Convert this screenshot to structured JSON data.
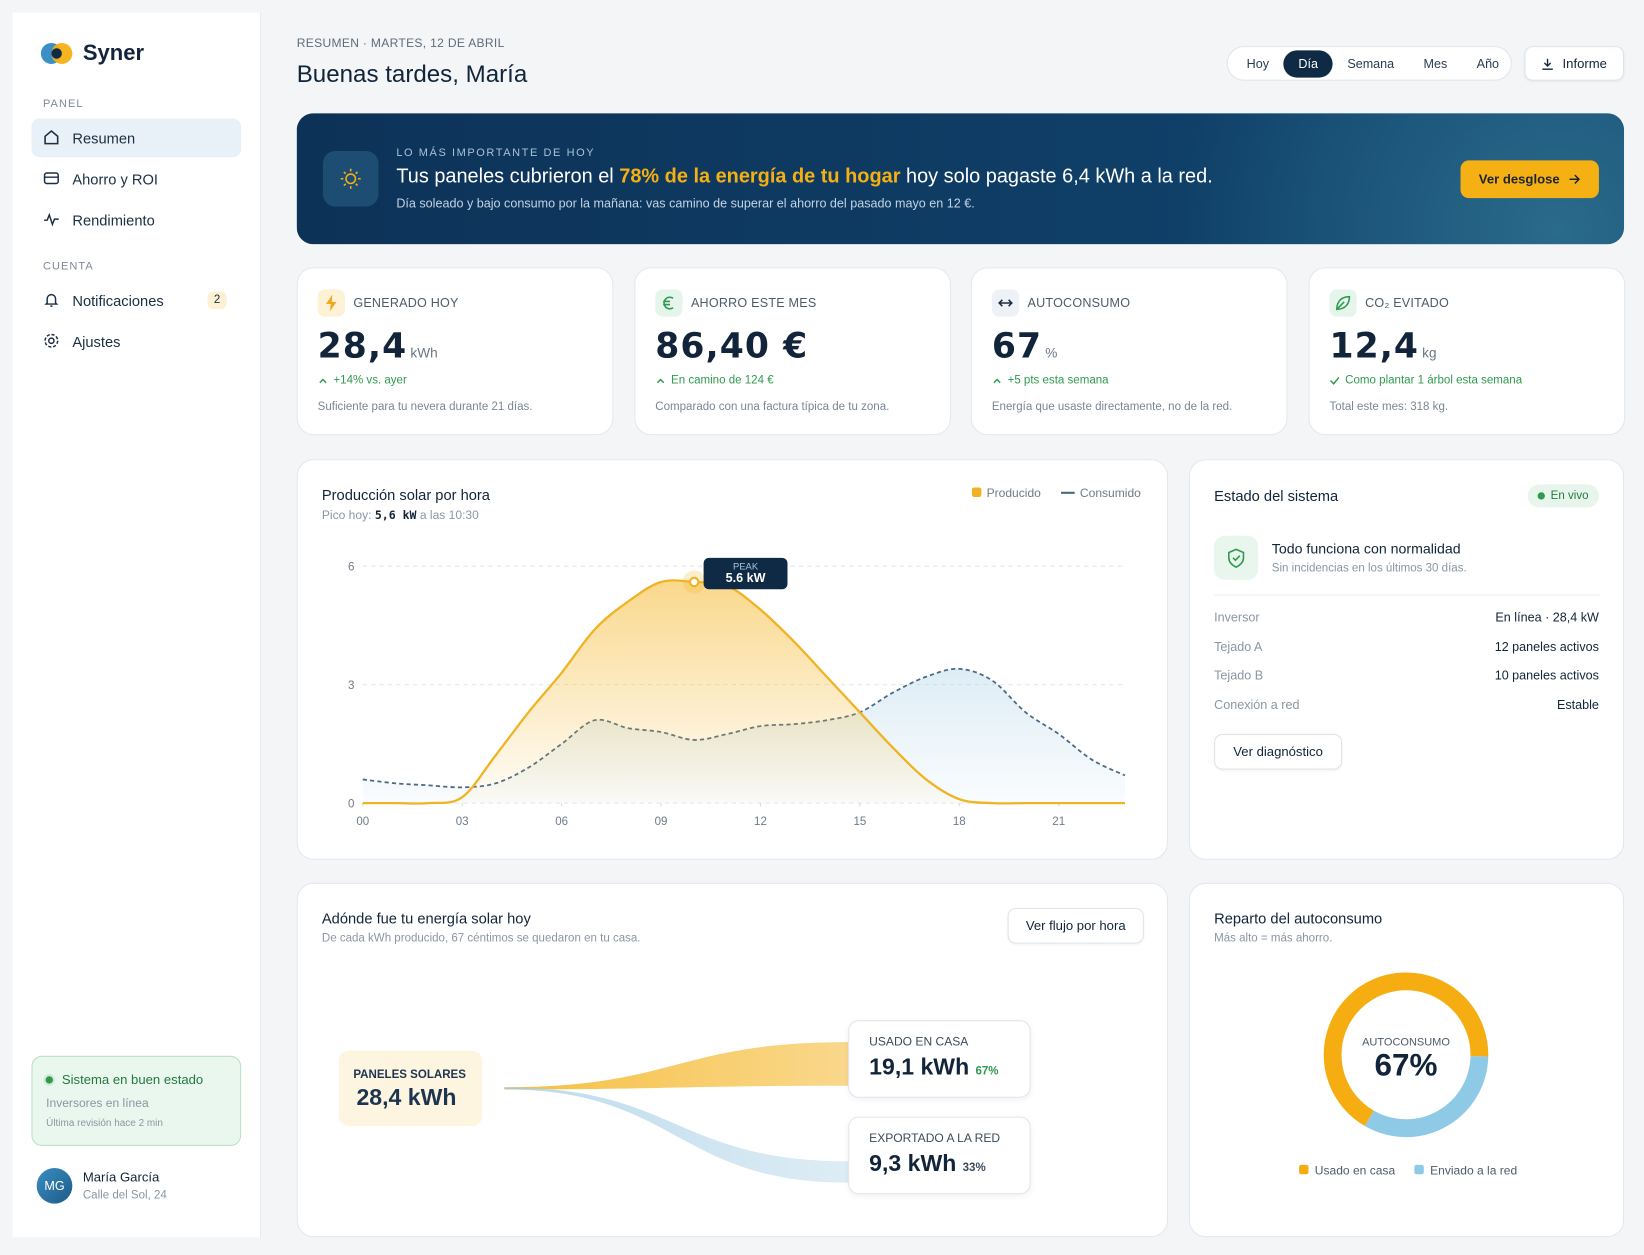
{
  "sidebar": {
    "brand": "Syner",
    "sections": [
      {
        "title": "PANEL",
        "items": [
          "Resumen",
          "Ahorro y ROI",
          "Rendimiento"
        ]
      },
      {
        "title": "CUENTA",
        "items": [
          "Notificaciones",
          "Ajustes"
        ]
      }
    ],
    "badge": "2",
    "status": {
      "title": "Sistema en buen estado",
      "line1": "Inversores en línea",
      "line2": "Última revisión hace 2 min"
    },
    "user": {
      "initials": "MG",
      "name": "María García",
      "address": "Calle del Sol, 24"
    }
  },
  "header": {
    "eyebrow": "RESUMEN · MARTES, 12 DE ABRIL",
    "title": "Buenas tardes, María",
    "periods": [
      "Hoy",
      "Día",
      "Semana",
      "Mes",
      "Año"
    ],
    "active_period": 1,
    "report": "Informe"
  },
  "banner": {
    "eyebrow": "LO MÁS IMPORTANTE DE HOY",
    "text_before": "Tus paneles cubrieron el ",
    "highlight": "78% de la energía de tu hogar",
    "text_after": " hoy solo pagaste 6,4 kWh a la red.",
    "detail": "Día soleado y bajo consumo por la mañana: vas camino de superar el ahorro del pasado mayo en 12 €.",
    "button": "Ver desglose"
  },
  "kpis": [
    {
      "label": "GENERADO HOY",
      "value": "28,4",
      "unit": "kWh",
      "delta": "+14% vs. ayer",
      "note": "Suficiente para tu nevera durante 21 días."
    },
    {
      "label": "AHORRO ESTE MES",
      "value": "86,40 €",
      "delta": "En camino de 124 €",
      "note": "Comparado con una factura típica de tu zona."
    },
    {
      "label": "AUTOCONSUMO",
      "value": "67",
      "unit": "%",
      "delta": "+5 pts esta semana",
      "note": "Energía que usaste directamente, no de la red."
    },
    {
      "label": "CO₂ EVITADO",
      "value": "12,4",
      "unit": "kg",
      "delta": "Como plantar 1 árbol esta semana",
      "note": "Total este mes: 318 kg."
    }
  ],
  "chart_data": {
    "type": "line",
    "title": "Producción solar por hora",
    "subtitle_before": "Pico hoy: ",
    "subtitle_value": "5,6 kW",
    "subtitle_after": " a las 10:30",
    "x": [
      0,
      1,
      2,
      3,
      4,
      5,
      6,
      7,
      8,
      9,
      10,
      11,
      12,
      13,
      14,
      15,
      16,
      17,
      18,
      19,
      20,
      21,
      22,
      23
    ],
    "xlim": [
      0,
      23
    ],
    "xticks": [
      {
        "value": 0,
        "label": "00"
      },
      {
        "value": 3,
        "label": "03"
      },
      {
        "value": 6,
        "label": "06"
      },
      {
        "value": 9,
        "label": "09"
      },
      12,
      15,
      18,
      21
    ],
    "ylim": [
      0,
      6
    ],
    "yticks": [
      0,
      3,
      6
    ],
    "grid": true,
    "series": [
      {
        "name": "Producido",
        "color": "#f0b323",
        "values": [
          0,
          0,
          0,
          0.15,
          1.2,
          2.3,
          3.3,
          4.4,
          5.1,
          5.6,
          5.6,
          5.5,
          4.9,
          4.1,
          3.2,
          2.3,
          1.4,
          0.6,
          0.1,
          0,
          0,
          0,
          0,
          0
        ]
      },
      {
        "name": "Consumido",
        "color": "#4a6a85",
        "dashed": true,
        "values": [
          0.6,
          0.5,
          0.45,
          0.4,
          0.5,
          0.9,
          1.5,
          2.1,
          1.9,
          1.8,
          1.6,
          1.75,
          1.95,
          2.0,
          2.1,
          2.3,
          2.8,
          3.2,
          3.4,
          3.1,
          2.3,
          1.75,
          1.1,
          0.7
        ]
      }
    ],
    "annotation": {
      "label": "PEAK",
      "x": 10,
      "y": 5.6,
      "value_label": "5.6 kW"
    }
  },
  "status": {
    "title": "Estado del sistema",
    "live": "En vivo",
    "ok_title": "Todo funciona con normalidad",
    "ok_detail": "Sin incidencias en los últimos 30 días.",
    "rows": [
      [
        "Inversor",
        "En línea · 28,4 kW"
      ],
      [
        "Tejado A",
        "12 paneles activos"
      ],
      [
        "Tejado B",
        "10 paneles activos"
      ],
      [
        "Conexión a red",
        "Estable"
      ]
    ],
    "button": "Ver diagnóstico"
  },
  "flow": {
    "title": "Adónde fue tu energía solar hoy",
    "subtitle": "De cada kWh producido, 67 céntimos se quedaron en tu casa.",
    "button": "Ver flujo por hora",
    "source": {
      "label": "PANELES SOLARES",
      "value": "28,4 kWh"
    },
    "targets": [
      {
        "label": "USADO EN CASA",
        "value": "19,1 kWh",
        "share": 67,
        "share_label": "67%",
        "color": "#f5b82e"
      },
      {
        "label": "EXPORTADO A LA RED",
        "value": "9,3 kWh",
        "share": 33,
        "share_label": "33%",
        "color": "#9fcbe3"
      }
    ]
  },
  "donut": {
    "type": "donut",
    "title": "Reparto del autoconsumo",
    "subtitle": "Más alto = más ahorro.",
    "center_label": "AUTOCONSUMO",
    "center_value_label": "67%",
    "names": [
      "Usado en casa",
      "Enviado a la red"
    ],
    "values": [
      67,
      33
    ],
    "colors": [
      "#f5ad12",
      "#8ecae6"
    ]
  }
}
